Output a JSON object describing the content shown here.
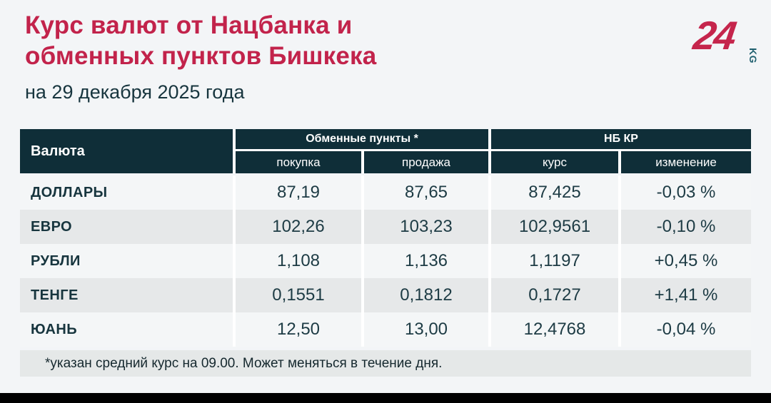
{
  "header": {
    "title_line1": "Курс валют от Нацбанка и",
    "title_line2": "обменных пунктов Бишкека",
    "subtitle": "на 29 декабря 2025 года"
  },
  "logo": {
    "number": "24",
    "suffix": "KG"
  },
  "colors": {
    "accent_red": "#c2234b",
    "table_header_bg": "#0f2e38",
    "cell_text": "#1d3b44",
    "row_even": "#e6e8e9",
    "row_odd": "#f4f6f7",
    "footnote_bg": "#e5e8e8",
    "page_bg": "#f3f5f7",
    "logo_kg_teal": "#1e5f6e"
  },
  "table": {
    "col_currency": "Валюта",
    "group_exchange": "Обменные пункты *",
    "group_nbkr": "НБ КР",
    "sub_buy": "покупка",
    "sub_sell": "продажа",
    "sub_rate": "курс",
    "sub_change": "изменение",
    "rows": [
      {
        "currency": "ДОЛЛАРЫ",
        "buy": "87,19",
        "sell": "87,65",
        "rate": "87,425",
        "change": "-0,03 %"
      },
      {
        "currency": "ЕВРО",
        "buy": "102,26",
        "sell": "103,23",
        "rate": "102,9561",
        "change": "-0,10 %"
      },
      {
        "currency": "РУБЛИ",
        "buy": "1,108",
        "sell": "1,136",
        "rate": "1,1197",
        "change": "+0,45 %"
      },
      {
        "currency": "ТЕНГЕ",
        "buy": "0,1551",
        "sell": "0,1812",
        "rate": "0,1727",
        "change": "+1,41 %"
      },
      {
        "currency": "ЮАНЬ",
        "buy": "12,50",
        "sell": "13,00",
        "rate": "12,4768",
        "change": "-0,04 %"
      }
    ]
  },
  "footnote": "*указан средний курс на 09.00. Может меняться в течение дня.",
  "chart_data": {
    "type": "table",
    "title": "Курс валют от Нацбанка и обменных пунктов Бишкека",
    "subtitle": "на 29 декабря 2025 года",
    "columns": [
      "Валюта",
      "Обменные пункты: покупка",
      "Обменные пункты: продажа",
      "НБ КР: курс",
      "НБ КР: изменение"
    ],
    "categories": [
      "ДОЛЛАРЫ",
      "ЕВРО",
      "РУБЛИ",
      "ТЕНГЕ",
      "ЮАНЬ"
    ],
    "series": [
      {
        "name": "покупка (обменные пункты)",
        "values": [
          87.19,
          102.26,
          1.108,
          0.1551,
          12.5
        ]
      },
      {
        "name": "продажа (обменные пункты)",
        "values": [
          87.65,
          103.23,
          1.136,
          0.1812,
          13.0
        ]
      },
      {
        "name": "курс НБ КР",
        "values": [
          87.425,
          102.9561,
          1.1197,
          0.1727,
          12.4768
        ]
      },
      {
        "name": "изменение НБ КР, %",
        "values": [
          -0.03,
          -0.1,
          0.45,
          1.41,
          -0.04
        ]
      }
    ],
    "footnote": "*указан средний курс на 09.00. Может меняться в течение дня."
  }
}
